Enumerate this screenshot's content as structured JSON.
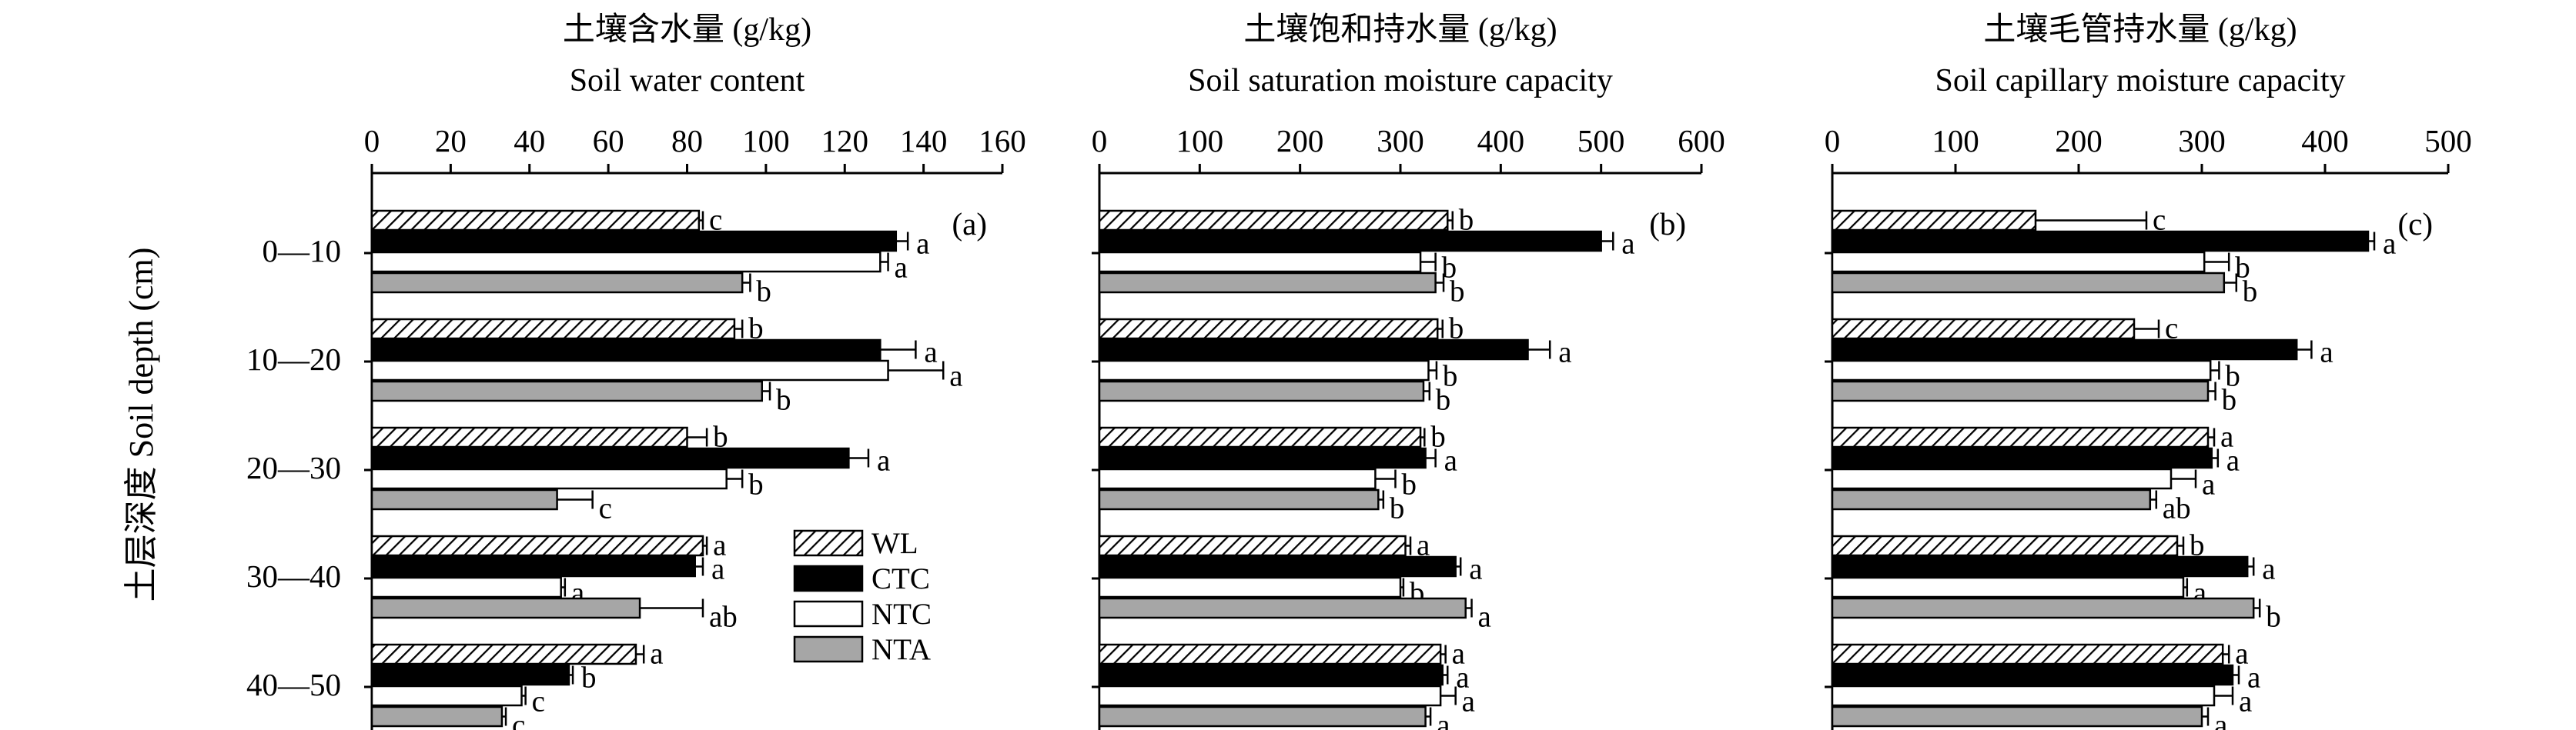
{
  "chart_data": {
    "type": "bar",
    "orientation": "horizontal",
    "ylabel": "土层深度 Soil depth (cm)",
    "categories": [
      "0—10",
      "10—20",
      "20—30",
      "30—40",
      "40—50"
    ],
    "legend": [
      {
        "name": "WL",
        "pattern": "hatch"
      },
      {
        "name": "CTC",
        "color": "#000000"
      },
      {
        "name": "NTC",
        "color": "#ffffff"
      },
      {
        "name": "NTA",
        "color": "#a6a6a6"
      }
    ],
    "panels": [
      {
        "label": "(a)",
        "title_cn": "土壤含水量 (g/kg)",
        "title_en": "Soil water content",
        "xlim": [
          0,
          160
        ],
        "ticks": [
          0,
          20,
          40,
          60,
          80,
          100,
          120,
          140,
          160
        ],
        "series": [
          {
            "name": "WL",
            "values": [
              83,
              92,
              80,
              84,
              67
            ],
            "errors": [
              1,
              2,
              5,
              1,
              2
            ],
            "letters": [
              "c",
              "b",
              "b",
              "a",
              "a"
            ]
          },
          {
            "name": "CTC",
            "values": [
              133,
              129,
              121,
              82,
              50
            ],
            "errors": [
              3,
              9,
              5,
              2,
              1
            ],
            "letters": [
              "a",
              "a",
              "a",
              "a",
              "b"
            ]
          },
          {
            "name": "NTC",
            "values": [
              129,
              131,
              90,
              48,
              38
            ],
            "errors": [
              2,
              14,
              4,
              1,
              1
            ],
            "letters": [
              "a",
              "a",
              "b",
              "a",
              "c"
            ]
          },
          {
            "name": "NTA",
            "values": [
              94,
              99,
              47,
              68,
              33
            ],
            "errors": [
              2,
              2,
              9,
              16,
              1
            ],
            "letters": [
              "b",
              "b",
              "c",
              "ab",
              "c"
            ]
          }
        ]
      },
      {
        "label": "(b)",
        "title_cn": "土壤饱和持水量 (g/kg)",
        "title_en": "Soil saturation moisture capacity",
        "xlim": [
          0,
          600
        ],
        "ticks": [
          0,
          100,
          200,
          300,
          400,
          500,
          600
        ],
        "series": [
          {
            "name": "WL",
            "values": [
              347,
              337,
              320,
              305,
              340
            ],
            "errors": [
              5,
              5,
              4,
              5,
              5
            ],
            "letters": [
              "b",
              "b",
              "b",
              "a",
              "a"
            ]
          },
          {
            "name": "CTC",
            "values": [
              500,
              427,
              325,
              355,
              342
            ],
            "errors": [
              12,
              22,
              10,
              5,
              5
            ],
            "letters": [
              "a",
              "a",
              "a",
              "a",
              "a"
            ]
          },
          {
            "name": "NTC",
            "values": [
              320,
              328,
              275,
              300,
              340
            ],
            "errors": [
              15,
              8,
              20,
              3,
              15
            ],
            "letters": [
              "b",
              "b",
              "b",
              "b",
              "a"
            ]
          },
          {
            "name": "NTA",
            "values": [
              335,
              323,
              278,
              365,
              325
            ],
            "errors": [
              8,
              6,
              5,
              6,
              5
            ],
            "letters": [
              "b",
              "b",
              "b",
              "a",
              "a"
            ]
          }
        ]
      },
      {
        "label": "(c)",
        "title_cn": "土壤毛管持水量 (g/kg)",
        "title_en": "Soil capillary moisture capacity",
        "xlim": [
          0,
          500
        ],
        "ticks": [
          0,
          100,
          200,
          300,
          400,
          500
        ],
        "series": [
          {
            "name": "WL",
            "values": [
              165,
              245,
              305,
              280,
              317
            ],
            "errors": [
              90,
              20,
              5,
              5,
              5
            ],
            "letters": [
              "c",
              "c",
              "a",
              "b",
              "a"
            ]
          },
          {
            "name": "CTC",
            "values": [
              435,
              377,
              308,
              337,
              325
            ],
            "errors": [
              5,
              12,
              5,
              5,
              5
            ],
            "letters": [
              "a",
              "a",
              "a",
              "a",
              "a"
            ]
          },
          {
            "name": "NTC",
            "values": [
              302,
              307,
              275,
              285,
              310
            ],
            "errors": [
              20,
              7,
              20,
              3,
              15
            ],
            "letters": [
              "b",
              "b",
              "a",
              "a",
              "a"
            ]
          },
          {
            "name": "NTA",
            "values": [
              318,
              305,
              258,
              342,
              300
            ],
            "errors": [
              10,
              6,
              5,
              5,
              5
            ],
            "letters": [
              "b",
              "b",
              "ab",
              "b",
              "a"
            ]
          }
        ]
      }
    ]
  }
}
